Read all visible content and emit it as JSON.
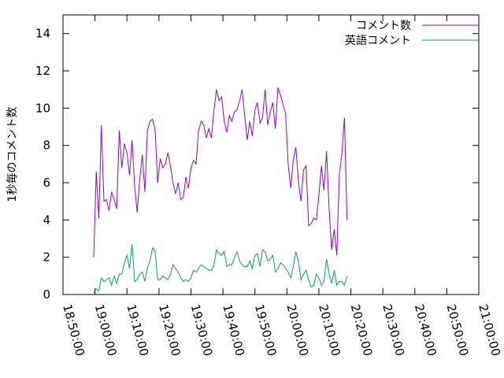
{
  "chart_data": {
    "type": "line",
    "ylabel": "1秒毎のコメント数",
    "ylim": [
      0,
      15
    ],
    "y_ticks": [
      "0",
      "2",
      "4",
      "6",
      "8",
      "10",
      "12",
      "14"
    ],
    "xlim": [
      "18:50:00",
      "21:00:00"
    ],
    "x_ticks": [
      "18:50:00",
      "19:00:00",
      "19:10:00",
      "19:20:00",
      "19:30:00",
      "19:40:00",
      "19:50:00",
      "20:00:00",
      "20:10:00",
      "20:20:00",
      "20:30:00",
      "20:40:00",
      "20:50:00",
      "21:00:00"
    ],
    "grid": false,
    "legend_position": "top-right",
    "series": [
      {
        "name": "コメント数",
        "color": "#9400d3",
        "points": [
          [
            "18:59:36",
            2.0
          ],
          [
            "19:00:24",
            6.6
          ],
          [
            "19:01:12",
            4.1
          ],
          [
            "19:02:00",
            9.1
          ],
          [
            "19:02:48",
            5.0
          ],
          [
            "19:03:36",
            5.1
          ],
          [
            "19:04:24",
            4.5
          ],
          [
            "19:05:12",
            5.5
          ],
          [
            "19:06:00",
            5.1
          ],
          [
            "19:06:48",
            4.6
          ],
          [
            "19:07:36",
            8.8
          ],
          [
            "19:08:24",
            6.8
          ],
          [
            "19:09:12",
            8.1
          ],
          [
            "19:10:00",
            7.6
          ],
          [
            "19:10:48",
            6.4
          ],
          [
            "19:11:36",
            8.3
          ],
          [
            "19:12:24",
            5.8
          ],
          [
            "19:13:12",
            4.4
          ],
          [
            "19:14:00",
            6.2
          ],
          [
            "19:14:48",
            7.5
          ],
          [
            "19:15:36",
            5.5
          ],
          [
            "19:16:24",
            8.8
          ],
          [
            "19:17:12",
            9.3
          ],
          [
            "19:18:00",
            9.4
          ],
          [
            "19:18:48",
            8.8
          ],
          [
            "19:19:36",
            6.0
          ],
          [
            "19:20:24",
            7.3
          ],
          [
            "19:21:12",
            6.8
          ],
          [
            "19:22:00",
            7.0
          ],
          [
            "19:22:48",
            7.6
          ],
          [
            "19:23:36",
            6.9
          ],
          [
            "19:24:24",
            6.0
          ],
          [
            "19:25:12",
            5.4
          ],
          [
            "19:26:00",
            6.0
          ],
          [
            "19:26:48",
            5.1
          ],
          [
            "19:27:36",
            5.2
          ],
          [
            "19:28:24",
            6.3
          ],
          [
            "19:29:12",
            5.7
          ],
          [
            "19:30:00",
            6.8
          ],
          [
            "19:30:48",
            7.2
          ],
          [
            "19:31:36",
            7.0
          ],
          [
            "19:32:24",
            8.8
          ],
          [
            "19:33:12",
            9.3
          ],
          [
            "19:34:00",
            9.1
          ],
          [
            "19:34:48",
            8.4
          ],
          [
            "19:35:36",
            8.9
          ],
          [
            "19:36:24",
            8.4
          ],
          [
            "19:37:12",
            9.9
          ],
          [
            "19:38:00",
            11.0
          ],
          [
            "19:38:48",
            10.4
          ],
          [
            "19:39:36",
            10.6
          ],
          [
            "19:40:24",
            9.3
          ],
          [
            "19:41:12",
            8.7
          ],
          [
            "19:42:00",
            9.6
          ],
          [
            "19:42:48",
            9.3
          ],
          [
            "19:43:36",
            9.8
          ],
          [
            "19:44:24",
            9.9
          ],
          [
            "19:45:12",
            10.4
          ],
          [
            "19:46:00",
            11.0
          ],
          [
            "19:46:48",
            9.6
          ],
          [
            "19:47:36",
            8.3
          ],
          [
            "19:48:24",
            9.3
          ],
          [
            "19:49:12",
            8.5
          ],
          [
            "19:50:00",
            9.9
          ],
          [
            "19:50:48",
            10.3
          ],
          [
            "19:51:36",
            9.2
          ],
          [
            "19:52:24",
            9.5
          ],
          [
            "19:53:12",
            11.0
          ],
          [
            "19:54:00",
            9.1
          ],
          [
            "19:54:48",
            9.8
          ],
          [
            "19:55:36",
            10.3
          ],
          [
            "19:56:24",
            8.9
          ],
          [
            "19:57:12",
            11.1
          ],
          [
            "19:58:00",
            10.7
          ],
          [
            "19:58:48",
            10.2
          ],
          [
            "19:59:36",
            9.7
          ],
          [
            "20:00:24",
            7.0
          ],
          [
            "20:01:12",
            5.7
          ],
          [
            "20:02:00",
            7.2
          ],
          [
            "20:02:48",
            7.9
          ],
          [
            "20:03:36",
            6.1
          ],
          [
            "20:04:24",
            5.0
          ],
          [
            "20:05:12",
            6.7
          ],
          [
            "20:06:00",
            6.9
          ],
          [
            "20:06:48",
            3.7
          ],
          [
            "20:07:36",
            3.8
          ],
          [
            "20:08:24",
            4.1
          ],
          [
            "20:09:12",
            4.0
          ],
          [
            "20:10:00",
            5.3
          ],
          [
            "20:10:48",
            6.9
          ],
          [
            "20:11:36",
            5.6
          ],
          [
            "20:12:24",
            7.7
          ],
          [
            "20:13:12",
            4.6
          ],
          [
            "20:14:00",
            2.4
          ],
          [
            "20:14:48",
            3.5
          ],
          [
            "20:15:36",
            2.1
          ],
          [
            "20:16:24",
            6.4
          ],
          [
            "20:17:12",
            7.6
          ],
          [
            "20:18:00",
            9.5
          ],
          [
            "20:18:48",
            4.0
          ]
        ]
      },
      {
        "name": "英語コメント",
        "color": "#009e73",
        "points": [
          [
            "18:59:36",
            0.1
          ],
          [
            "19:00:24",
            0.3
          ],
          [
            "19:01:12",
            0.2
          ],
          [
            "19:02:00",
            0.9
          ],
          [
            "19:02:48",
            0.7
          ],
          [
            "19:03:36",
            0.8
          ],
          [
            "19:04:24",
            0.9
          ],
          [
            "19:05:12",
            0.5
          ],
          [
            "19:06:00",
            1.0
          ],
          [
            "19:06:48",
            0.6
          ],
          [
            "19:07:36",
            1.1
          ],
          [
            "19:08:24",
            1.1
          ],
          [
            "19:09:12",
            1.7
          ],
          [
            "19:10:00",
            2.1
          ],
          [
            "19:10:48",
            1.4
          ],
          [
            "19:11:36",
            2.7
          ],
          [
            "19:12:24",
            0.7
          ],
          [
            "19:13:12",
            0.8
          ],
          [
            "19:14:00",
            1.1
          ],
          [
            "19:14:48",
            1.2
          ],
          [
            "19:15:36",
            0.7
          ],
          [
            "19:16:24",
            1.4
          ],
          [
            "19:17:12",
            1.8
          ],
          [
            "19:18:00",
            2.5
          ],
          [
            "19:18:48",
            2.3
          ],
          [
            "19:19:36",
            0.8
          ],
          [
            "19:20:24",
            0.8
          ],
          [
            "19:21:12",
            1.0
          ],
          [
            "19:22:00",
            0.9
          ],
          [
            "19:22:48",
            0.8
          ],
          [
            "19:23:36",
            1.1
          ],
          [
            "19:24:24",
            1.6
          ],
          [
            "19:25:12",
            1.4
          ],
          [
            "19:26:00",
            1.2
          ],
          [
            "19:26:48",
            0.9
          ],
          [
            "19:27:36",
            0.7
          ],
          [
            "19:28:24",
            0.8
          ],
          [
            "19:29:12",
            0.7
          ],
          [
            "19:30:00",
            0.9
          ],
          [
            "19:30:48",
            1.3
          ],
          [
            "19:31:36",
            1.2
          ],
          [
            "19:32:24",
            1.4
          ],
          [
            "19:33:12",
            1.6
          ],
          [
            "19:34:00",
            1.5
          ],
          [
            "19:34:48",
            1.4
          ],
          [
            "19:35:36",
            1.3
          ],
          [
            "19:36:24",
            1.3
          ],
          [
            "19:37:12",
            1.6
          ],
          [
            "19:38:00",
            2.4
          ],
          [
            "19:38:48",
            2.2
          ],
          [
            "19:39:36",
            2.1
          ],
          [
            "19:40:24",
            2.3
          ],
          [
            "19:41:12",
            1.5
          ],
          [
            "19:42:00",
            1.6
          ],
          [
            "19:42:48",
            1.6
          ],
          [
            "19:43:36",
            2.0
          ],
          [
            "19:44:24",
            2.3
          ],
          [
            "19:45:12",
            1.8
          ],
          [
            "19:46:00",
            1.6
          ],
          [
            "19:46:48",
            1.5
          ],
          [
            "19:47:36",
            1.5
          ],
          [
            "19:48:24",
            1.8
          ],
          [
            "19:49:12",
            1.4
          ],
          [
            "19:50:00",
            2.1
          ],
          [
            "19:50:48",
            2.2
          ],
          [
            "19:51:36",
            1.5
          ],
          [
            "19:52:24",
            2.4
          ],
          [
            "19:53:12",
            2.3
          ],
          [
            "19:54:00",
            1.8
          ],
          [
            "19:54:48",
            1.9
          ],
          [
            "19:55:36",
            2.1
          ],
          [
            "19:56:24",
            1.2
          ],
          [
            "19:57:12",
            1.4
          ],
          [
            "19:58:00",
            1.7
          ],
          [
            "19:58:48",
            1.6
          ],
          [
            "19:59:36",
            1.4
          ],
          [
            "20:00:24",
            1.2
          ],
          [
            "20:01:12",
            0.9
          ],
          [
            "20:02:00",
            1.5
          ],
          [
            "20:02:48",
            2.3
          ],
          [
            "20:03:36",
            1.8
          ],
          [
            "20:04:24",
            0.8
          ],
          [
            "20:05:12",
            1.1
          ],
          [
            "20:06:00",
            1.3
          ],
          [
            "20:06:48",
            0.8
          ],
          [
            "20:07:36",
            0.4
          ],
          [
            "20:08:24",
            0.5
          ],
          [
            "20:09:12",
            1.1
          ],
          [
            "20:10:00",
            0.9
          ],
          [
            "20:10:48",
            0.5
          ],
          [
            "20:11:36",
            0.7
          ],
          [
            "20:12:24",
            1.9
          ],
          [
            "20:13:12",
            1.1
          ],
          [
            "20:14:00",
            0.6
          ],
          [
            "20:14:48",
            1.3
          ],
          [
            "20:15:36",
            0.5
          ],
          [
            "20:16:24",
            0.7
          ],
          [
            "20:17:12",
            0.7
          ],
          [
            "20:18:00",
            0.5
          ],
          [
            "20:18:48",
            1.0
          ]
        ]
      }
    ]
  }
}
